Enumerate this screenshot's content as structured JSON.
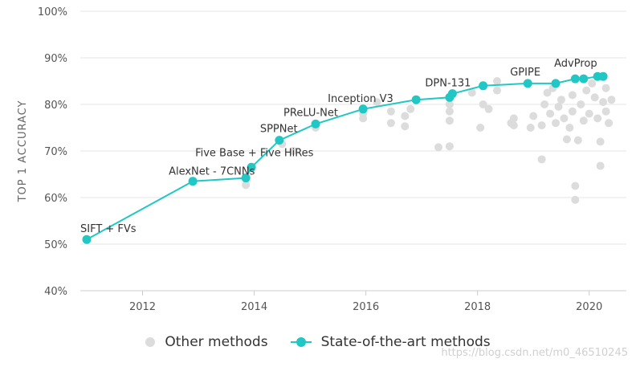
{
  "chart_data": {
    "type": "scatter",
    "ylabel": "TOP 1 ACCURACY",
    "xlim": [
      2011.0,
      2020.45
    ],
    "ylim": [
      40,
      100
    ],
    "x_ticks": [
      2012,
      2014,
      2016,
      2018,
      2020
    ],
    "y_ticks": [
      40,
      50,
      60,
      70,
      80,
      90,
      100
    ],
    "y_tick_suffix": "%",
    "grid": true,
    "legend_position": "bottom-center",
    "colors": {
      "other": "#dcdcdc",
      "sota": "#21c7c4"
    },
    "legend": [
      "Other methods",
      "State-of-the-art methods"
    ],
    "series": [
      {
        "name": "State-of-the-art methods",
        "points": [
          {
            "x": 2011.0,
            "y": 51.0,
            "label": "SIFT + FVs"
          },
          {
            "x": 2012.9,
            "y": 63.5,
            "label": "AlexNet - 7CNNs"
          },
          {
            "x": 2013.85,
            "y": 64.2,
            "label": ""
          },
          {
            "x": 2013.95,
            "y": 66.5,
            "label": "Five Base + Five HiRes"
          },
          {
            "x": 2014.45,
            "y": 72.3,
            "label": "SPPNet"
          },
          {
            "x": 2015.1,
            "y": 75.8,
            "label": "PReLU-Net"
          },
          {
            "x": 2015.95,
            "y": 79.0,
            "label": "Inception V3"
          },
          {
            "x": 2016.9,
            "y": 81.0,
            "label": ""
          },
          {
            "x": 2017.5,
            "y": 81.5,
            "label": ""
          },
          {
            "x": 2017.55,
            "y": 82.3,
            "label": "DPN-131"
          },
          {
            "x": 2018.1,
            "y": 84.0,
            "label": ""
          },
          {
            "x": 2018.9,
            "y": 84.5,
            "label": "GPIPE"
          },
          {
            "x": 2019.4,
            "y": 84.5,
            "label": ""
          },
          {
            "x": 2019.75,
            "y": 85.5,
            "label": ""
          },
          {
            "x": 2019.9,
            "y": 85.5,
            "label": ""
          },
          {
            "x": 2020.15,
            "y": 86.0,
            "label": "AdvProp"
          },
          {
            "x": 2020.25,
            "y": 86.0,
            "label": ""
          }
        ]
      },
      {
        "name": "Other methods",
        "points": [
          {
            "x": 2013.85,
            "y": 62.7
          },
          {
            "x": 2014.5,
            "y": 71.5
          },
          {
            "x": 2014.7,
            "y": 70.0
          },
          {
            "x": 2015.1,
            "y": 75.0
          },
          {
            "x": 2015.95,
            "y": 77.0
          },
          {
            "x": 2015.95,
            "y": 78.0
          },
          {
            "x": 2016.2,
            "y": 80.5
          },
          {
            "x": 2016.45,
            "y": 78.5
          },
          {
            "x": 2016.45,
            "y": 76.0
          },
          {
            "x": 2016.7,
            "y": 77.5
          },
          {
            "x": 2016.7,
            "y": 75.3
          },
          {
            "x": 2016.8,
            "y": 79.0
          },
          {
            "x": 2017.3,
            "y": 70.8
          },
          {
            "x": 2017.5,
            "y": 71.0
          },
          {
            "x": 2017.5,
            "y": 76.5
          },
          {
            "x": 2017.5,
            "y": 78.5
          },
          {
            "x": 2017.5,
            "y": 80.0
          },
          {
            "x": 2017.9,
            "y": 82.5
          },
          {
            "x": 2018.05,
            "y": 75.0
          },
          {
            "x": 2018.1,
            "y": 80.0
          },
          {
            "x": 2018.2,
            "y": 79.0
          },
          {
            "x": 2018.35,
            "y": 85.0
          },
          {
            "x": 2018.35,
            "y": 83.0
          },
          {
            "x": 2018.6,
            "y": 76.0
          },
          {
            "x": 2018.65,
            "y": 75.5
          },
          {
            "x": 2018.65,
            "y": 77.0
          },
          {
            "x": 2018.95,
            "y": 75.0
          },
          {
            "x": 2019.0,
            "y": 77.5
          },
          {
            "x": 2019.15,
            "y": 68.2
          },
          {
            "x": 2019.15,
            "y": 75.5
          },
          {
            "x": 2019.2,
            "y": 80.0
          },
          {
            "x": 2019.25,
            "y": 82.5
          },
          {
            "x": 2019.3,
            "y": 78.0
          },
          {
            "x": 2019.35,
            "y": 83.5
          },
          {
            "x": 2019.4,
            "y": 76.0
          },
          {
            "x": 2019.45,
            "y": 79.5
          },
          {
            "x": 2019.5,
            "y": 81.0
          },
          {
            "x": 2019.55,
            "y": 77.0
          },
          {
            "x": 2019.6,
            "y": 72.5
          },
          {
            "x": 2019.65,
            "y": 75.0
          },
          {
            "x": 2019.7,
            "y": 82.0
          },
          {
            "x": 2019.7,
            "y": 78.5
          },
          {
            "x": 2019.75,
            "y": 62.5
          },
          {
            "x": 2019.75,
            "y": 59.5
          },
          {
            "x": 2019.8,
            "y": 72.3
          },
          {
            "x": 2019.85,
            "y": 80.0
          },
          {
            "x": 2019.9,
            "y": 76.5
          },
          {
            "x": 2019.95,
            "y": 83.0
          },
          {
            "x": 2020.0,
            "y": 78.0
          },
          {
            "x": 2020.05,
            "y": 84.5
          },
          {
            "x": 2020.1,
            "y": 81.5
          },
          {
            "x": 2020.15,
            "y": 77.0
          },
          {
            "x": 2020.2,
            "y": 72.0
          },
          {
            "x": 2020.2,
            "y": 66.8
          },
          {
            "x": 2020.25,
            "y": 80.5
          },
          {
            "x": 2020.3,
            "y": 83.5
          },
          {
            "x": 2020.3,
            "y": 78.5
          },
          {
            "x": 2020.35,
            "y": 76.0
          },
          {
            "x": 2020.4,
            "y": 81.0
          }
        ]
      }
    ]
  },
  "watermark": "https://blog.csdn.net/m0_46510245"
}
